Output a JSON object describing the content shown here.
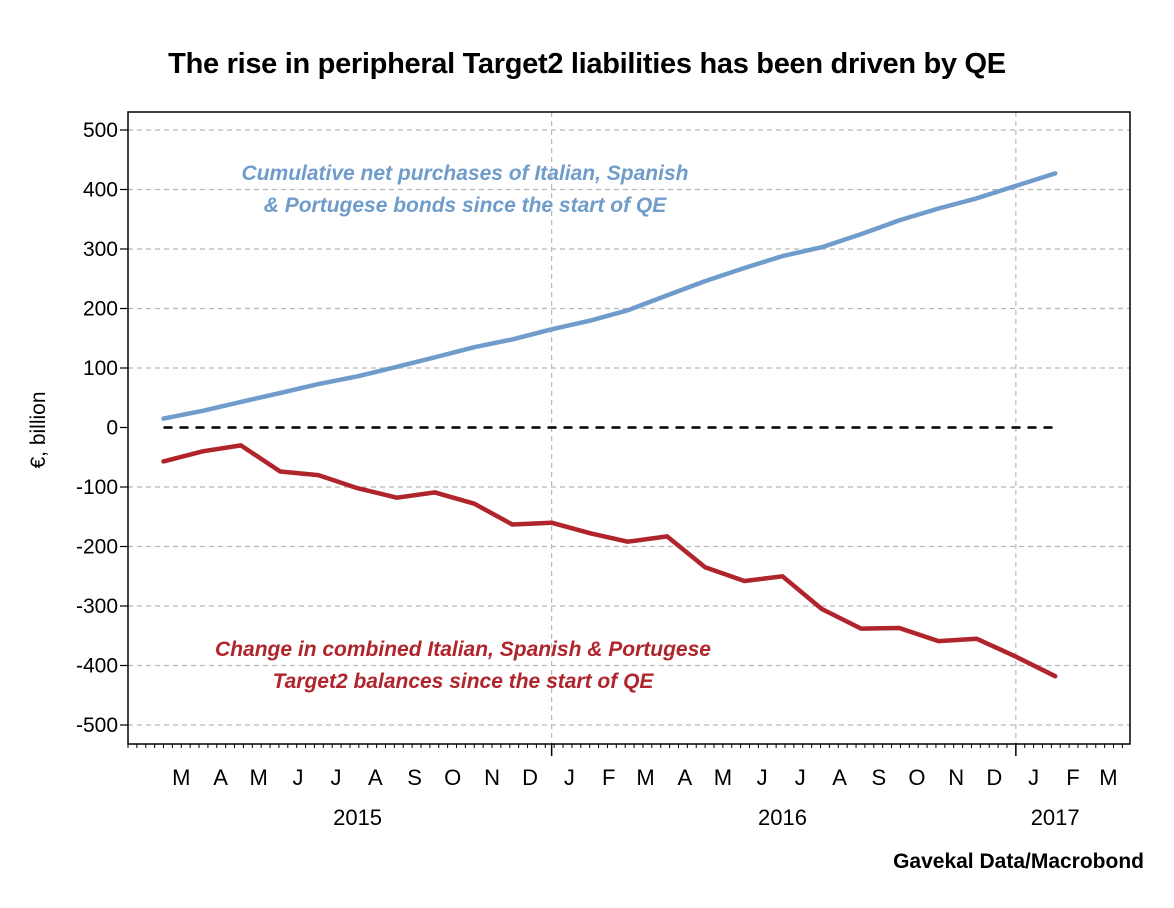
{
  "chart_data": {
    "type": "line",
    "title": "The rise in peripheral Target2 liabilities has been driven by QE",
    "ylabel": "€, billion",
    "xlabel": "",
    "ylim": [
      -500,
      500
    ],
    "yticks": [
      500,
      400,
      300,
      200,
      100,
      0,
      -100,
      -200,
      -300,
      -400,
      -500
    ],
    "ytick_labels": [
      "500",
      "400",
      "300",
      "200",
      "100",
      "0",
      "-100",
      "-200",
      "-300",
      "-400",
      "-500"
    ],
    "x_axis": {
      "type": "date",
      "start": "2015-02-01",
      "end": "2017-04-01",
      "month_labels": [
        {
          "label": "M",
          "date": "2015-03"
        },
        {
          "label": "A",
          "date": "2015-04"
        },
        {
          "label": "M",
          "date": "2015-05"
        },
        {
          "label": "J",
          "date": "2015-06"
        },
        {
          "label": "J",
          "date": "2015-07"
        },
        {
          "label": "A",
          "date": "2015-08"
        },
        {
          "label": "S",
          "date": "2015-09"
        },
        {
          "label": "O",
          "date": "2015-10"
        },
        {
          "label": "N",
          "date": "2015-11"
        },
        {
          "label": "D",
          "date": "2015-12"
        },
        {
          "label": "J",
          "date": "2016-01"
        },
        {
          "label": "F",
          "date": "2016-02"
        },
        {
          "label": "M",
          "date": "2016-03"
        },
        {
          "label": "A",
          "date": "2016-04"
        },
        {
          "label": "M",
          "date": "2016-05"
        },
        {
          "label": "J",
          "date": "2016-06"
        },
        {
          "label": "J",
          "date": "2016-07"
        },
        {
          "label": "A",
          "date": "2016-08"
        },
        {
          "label": "S",
          "date": "2016-09"
        },
        {
          "label": "O",
          "date": "2016-10"
        },
        {
          "label": "N",
          "date": "2016-11"
        },
        {
          "label": "D",
          "date": "2016-12"
        },
        {
          "label": "J",
          "date": "2017-01"
        },
        {
          "label": "F",
          "date": "2017-02"
        },
        {
          "label": "M",
          "date": "2017-03"
        }
      ],
      "year_labels": [
        {
          "label": "2015",
          "date": "2015-08"
        },
        {
          "label": "2016",
          "date": "2016-07"
        },
        {
          "label": "2017",
          "date": "2017-02"
        }
      ],
      "year_boundaries": [
        "2016-01-01",
        "2017-01-01"
      ]
    },
    "grid": true,
    "series": [
      {
        "name": "Cumulative net purchases of Italian, Spanish & Portugese bonds since the start of QE",
        "color": "#6f9ccb",
        "x": [
          "2015-03-01",
          "2015-04-01",
          "2015-05-01",
          "2015-06-01",
          "2015-07-01",
          "2015-08-01",
          "2015-09-01",
          "2015-10-01",
          "2015-11-01",
          "2015-12-01",
          "2016-01-01",
          "2016-02-01",
          "2016-03-01",
          "2016-04-01",
          "2016-05-01",
          "2016-06-01",
          "2016-07-01",
          "2016-08-01",
          "2016-09-01",
          "2016-10-01",
          "2016-11-01",
          "2016-12-01",
          "2017-01-01",
          "2017-02-01"
        ],
        "values": [
          15,
          28,
          43,
          58,
          73,
          86,
          102,
          118,
          135,
          148,
          165,
          180,
          197,
          222,
          246,
          268,
          288,
          303,
          325,
          348,
          368,
          385,
          406,
          427
        ]
      },
      {
        "name": "Change in combined Italian, Spanish & Portugese Target2 balances since the start of QE",
        "color": "#b0242b",
        "x": [
          "2015-03-01",
          "2015-04-01",
          "2015-05-01",
          "2015-06-01",
          "2015-07-01",
          "2015-08-01",
          "2015-09-01",
          "2015-10-01",
          "2015-11-01",
          "2015-12-01",
          "2016-01-01",
          "2016-02-01",
          "2016-03-01",
          "2016-04-01",
          "2016-05-01",
          "2016-06-01",
          "2016-07-01",
          "2016-08-01",
          "2016-09-01",
          "2016-10-01",
          "2016-11-01",
          "2016-12-01",
          "2017-01-01",
          "2017-02-01"
        ],
        "values": [
          -57,
          -40,
          -30,
          -74,
          -80,
          -102,
          -118,
          -109,
          -128,
          -163,
          -160,
          -178,
          -192,
          -183,
          -235,
          -258,
          -250,
          -305,
          -338,
          -337,
          -359,
          -355,
          -385,
          -418
        ]
      }
    ],
    "zero_line": {
      "y": 0,
      "style": "dashed",
      "color": "#000000"
    },
    "annotations": [
      {
        "lines": [
          "Cumulative net purchases of Italian, Spanish",
          "& Portugese bonds since the start of QE"
        ],
        "color": "#6f9ccb"
      },
      {
        "lines": [
          "Change in combined Italian, Spanish & Portugese",
          "Target2 balances since the start of QE"
        ],
        "color": "#b0242b"
      }
    ],
    "source": "Gavekal Data/Macrobond"
  }
}
